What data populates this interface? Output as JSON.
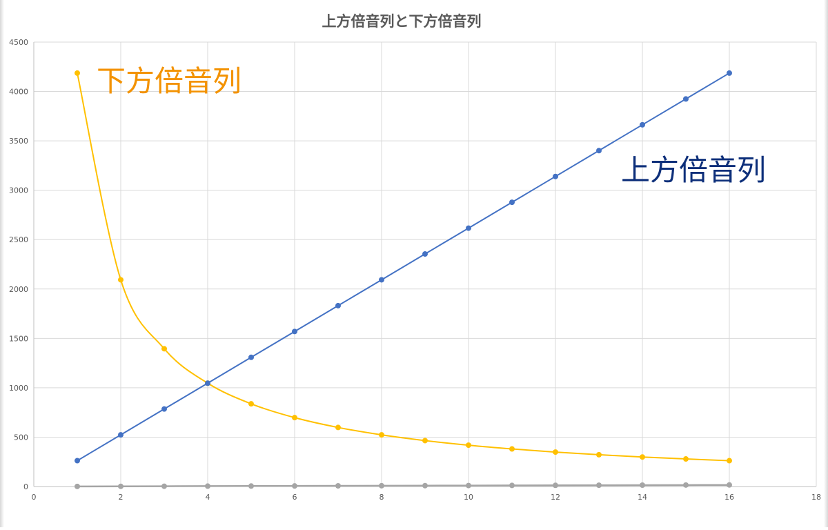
{
  "chart_data": {
    "type": "scatter",
    "title": "上方倍音列と下方倍音列",
    "xlim": [
      0,
      18
    ],
    "ylim": [
      0,
      4500
    ],
    "x_ticks": [
      0,
      2,
      4,
      6,
      8,
      10,
      12,
      14,
      16,
      18
    ],
    "y_ticks": [
      0,
      500,
      1000,
      1500,
      2000,
      2500,
      3000,
      3500,
      4000,
      4500
    ],
    "grid": true,
    "legend": "none",
    "x": [
      1,
      2,
      3,
      4,
      5,
      6,
      7,
      8,
      9,
      10,
      11,
      12,
      13,
      14,
      15,
      16
    ],
    "series": [
      {
        "name": "上方倍音列",
        "color": "#4472C4",
        "label_color": "#0D2F7A",
        "smooth": false,
        "values": [
          261.6,
          523.3,
          784.9,
          1046.5,
          1308.1,
          1569.8,
          1831.4,
          2093.0,
          2354.7,
          2616.3,
          2877.9,
          3139.6,
          3401.2,
          3662.8,
          3924.5,
          4186.1
        ]
      },
      {
        "name": "下方倍音列",
        "color": "#FFC000",
        "label_color": "#F39200",
        "smooth": true,
        "values": [
          4186.0,
          2093.0,
          1395.3,
          1046.5,
          837.2,
          697.7,
          598.0,
          523.3,
          465.1,
          418.6,
          380.5,
          348.8,
          322.0,
          299.0,
          279.1,
          261.6
        ]
      },
      {
        "name": "",
        "color": "#A5A5A5",
        "smooth": false,
        "values": [
          1,
          2,
          3,
          4,
          5,
          6,
          7,
          8,
          9,
          10,
          11,
          12,
          13,
          14,
          15,
          16
        ]
      }
    ]
  }
}
